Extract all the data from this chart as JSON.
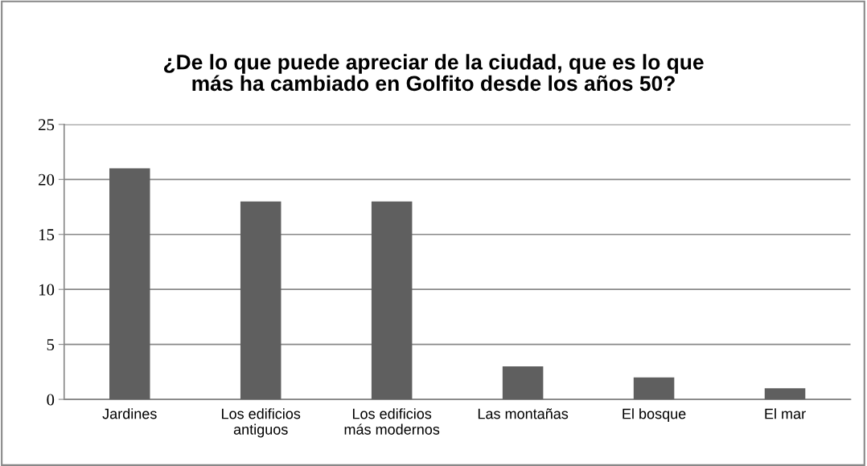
{
  "chart_data": {
    "type": "bar",
    "title": "¿De lo que puede apreciar de la ciudad, que es lo que\nmás ha cambiado en Golfito desde los años 50?",
    "categories": [
      "Jardines",
      "Los edificios\nantiguos",
      "Los edificios\nmás modernos",
      "Las montañas",
      "El bosque",
      "El mar"
    ],
    "values": [
      21,
      18,
      18,
      3,
      2,
      1
    ],
    "color": "#5f5f5f",
    "ylim": [
      0,
      25
    ],
    "yticks": [
      0,
      5,
      10,
      15,
      20,
      25
    ],
    "grid": "y"
  }
}
